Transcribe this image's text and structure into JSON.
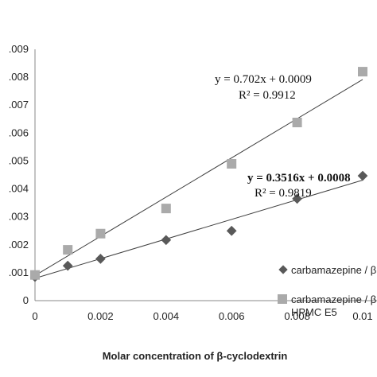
{
  "chart_data": {
    "type": "scatter",
    "xlabel": "Molar concentration of β-cyclodextrin",
    "ylabel": "",
    "xlim": [
      0,
      0.01
    ],
    "ylim": [
      0,
      0.009
    ],
    "x_ticks": [
      "0",
      "0.002",
      "0.004",
      "0.006",
      "0.008",
      "0.01"
    ],
    "y_ticks": [
      "0",
      "0.001",
      "0.002",
      "0.003",
      "0.004",
      "0.005",
      "0.006",
      "0.007",
      "0.008",
      "0.009"
    ],
    "grid": false,
    "legend_position": "bottom-right",
    "series": [
      {
        "name": "carbamazepine / β",
        "marker": "diamond",
        "color": "#595959",
        "x": [
          0,
          0.001,
          0.002,
          0.004,
          0.006,
          0.008,
          0.01
        ],
        "y": [
          0.00085,
          0.00125,
          0.0015,
          0.00217,
          0.0025,
          0.00365,
          0.00447
        ],
        "trendline": {
          "slope": 0.3516,
          "intercept": 0.0008
        },
        "equation": "y = 0.3516x + 0.0008",
        "r2": "R² = 0.9819"
      },
      {
        "name": "carbamazepine / β HPMC E5",
        "marker": "square",
        "color": "#aaaaaa",
        "x": [
          0,
          0.001,
          0.002,
          0.004,
          0.006,
          0.008,
          0.01
        ],
        "y": [
          0.00092,
          0.00182,
          0.0024,
          0.0033,
          0.0049,
          0.00638,
          0.0082
        ],
        "trendline": {
          "slope": 0.702,
          "intercept": 0.0009
        },
        "equation": "y = 0.702x + 0.0009",
        "r2": "R² = 0.9912"
      }
    ]
  }
}
